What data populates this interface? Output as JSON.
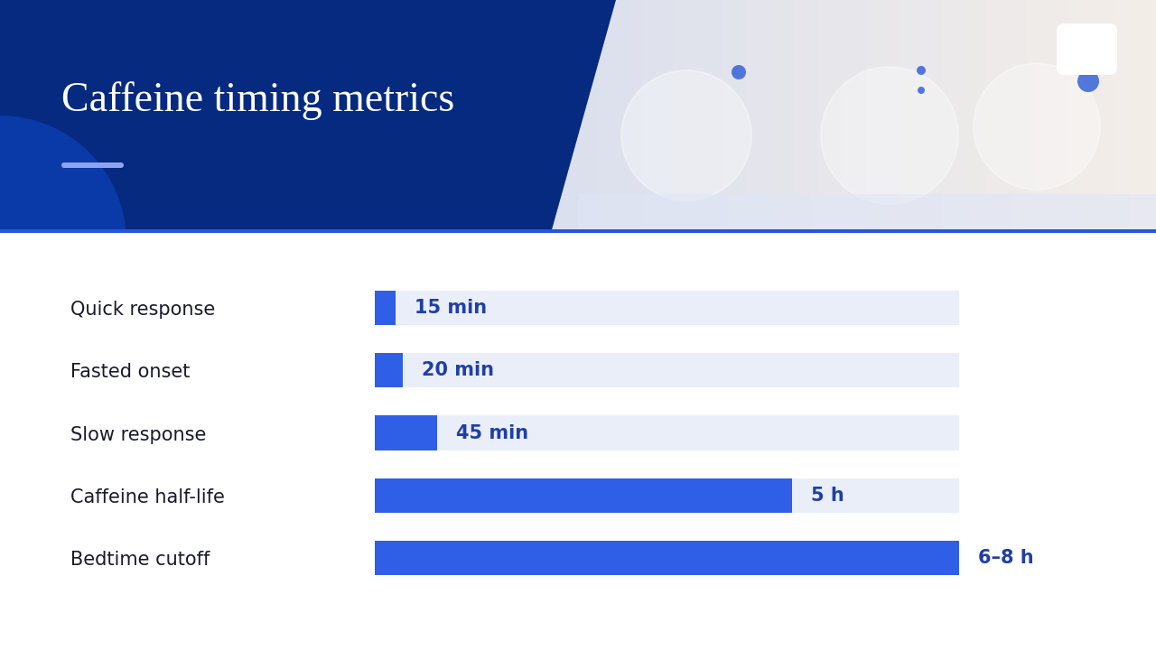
{
  "chart_data": {
    "type": "bar",
    "orientation": "horizontal",
    "title": "Caffeine timing metrics",
    "categories": [
      "Quick response",
      "Fasted onset",
      "Slow response",
      "Caffeine half-life",
      "Bedtime cutoff"
    ],
    "values": [
      15,
      20,
      45,
      300,
      420
    ],
    "value_labels": [
      "15 min",
      "20 min",
      "45 min",
      "5 h",
      "6–8 h"
    ],
    "xlim": [
      0,
      420
    ],
    "color": "#2f5fe6",
    "data_labels": true,
    "tick_labels": "y"
  }
}
